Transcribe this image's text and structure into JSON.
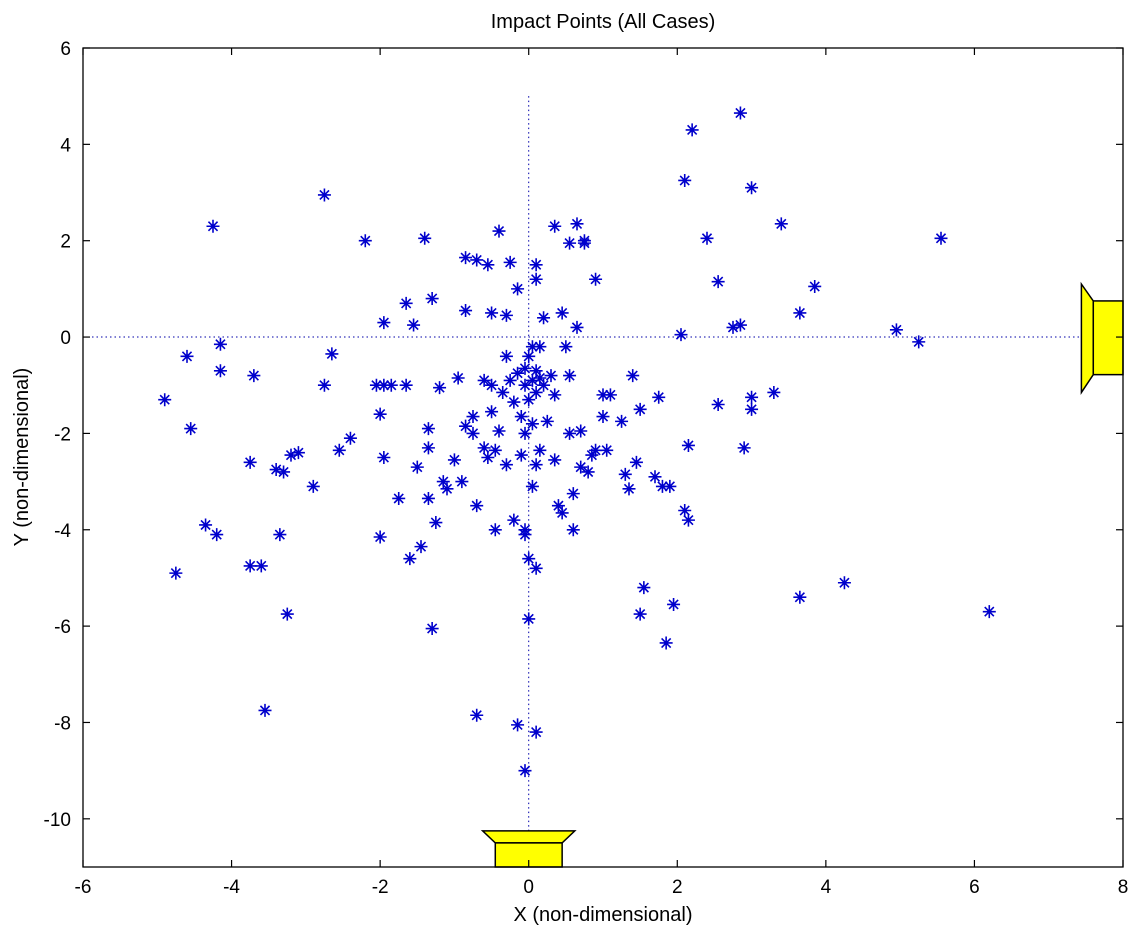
{
  "chart_data": {
    "type": "scatter",
    "title": "Impact Points (All Cases)",
    "xlabel": "X (non-dimensional)",
    "ylabel": "Y (non-dimensional)",
    "xlim": [
      -6,
      8
    ],
    "ylim": [
      -11,
      6
    ],
    "xticks": [
      -6,
      -4,
      -2,
      0,
      2,
      4,
      6,
      8
    ],
    "yticks": [
      -10,
      -8,
      -6,
      -4,
      -2,
      0,
      2,
      4,
      6
    ],
    "marker": "asterisk",
    "marker_color": "#0000cc",
    "reference_lines": {
      "vertical_x": 0,
      "horizontal_y": 0,
      "style": "dotted"
    },
    "grid": false,
    "series": [
      {
        "points": [
          [
            -4.9,
            -1.3
          ],
          [
            -4.75,
            -4.9
          ],
          [
            -4.6,
            -0.4
          ],
          [
            -4.55,
            -1.9
          ],
          [
            -4.35,
            -3.9
          ],
          [
            -4.25,
            2.3
          ],
          [
            -4.2,
            -4.1
          ],
          [
            -4.15,
            -0.15
          ],
          [
            -4.15,
            -0.7
          ],
          [
            -3.7,
            -0.8
          ],
          [
            -3.75,
            -2.6
          ],
          [
            -3.75,
            -4.75
          ],
          [
            -3.6,
            -4.75
          ],
          [
            -3.55,
            -7.75
          ],
          [
            -3.4,
            -2.75
          ],
          [
            -3.3,
            -2.8
          ],
          [
            -3.35,
            -4.1
          ],
          [
            -3.2,
            -2.45
          ],
          [
            -3.1,
            -2.4
          ],
          [
            -3.25,
            -5.75
          ],
          [
            -2.9,
            -3.1
          ],
          [
            -2.75,
            2.95
          ],
          [
            -2.75,
            -1.0
          ],
          [
            -2.65,
            -0.35
          ],
          [
            -2.55,
            -2.35
          ],
          [
            -2.4,
            -2.1
          ],
          [
            -2.2,
            2.0
          ],
          [
            -2.05,
            -1.0
          ],
          [
            -2.0,
            -1.6
          ],
          [
            -1.95,
            -1.0
          ],
          [
            -2.0,
            -4.15
          ],
          [
            -1.95,
            -2.5
          ],
          [
            -1.95,
            0.3
          ],
          [
            -1.85,
            -1.0
          ],
          [
            -1.75,
            -3.35
          ],
          [
            -1.65,
            0.7
          ],
          [
            -1.65,
            -1.0
          ],
          [
            -1.6,
            -4.6
          ],
          [
            -1.55,
            0.25
          ],
          [
            -1.5,
            -2.7
          ],
          [
            -1.45,
            -4.35
          ],
          [
            -1.4,
            2.05
          ],
          [
            -1.35,
            -1.9
          ],
          [
            -1.35,
            -2.3
          ],
          [
            -1.35,
            -3.35
          ],
          [
            -1.3,
            0.8
          ],
          [
            -1.3,
            -6.05
          ],
          [
            -1.2,
            -1.05
          ],
          [
            -1.25,
            -3.85
          ],
          [
            -1.15,
            -3.0
          ],
          [
            -1.1,
            -3.15
          ],
          [
            -1.0,
            -2.55
          ],
          [
            -0.95,
            -0.85
          ],
          [
            -0.9,
            -3.0
          ],
          [
            -0.85,
            -1.85
          ],
          [
            -0.85,
            0.55
          ],
          [
            -0.85,
            1.65
          ],
          [
            -0.75,
            -1.65
          ],
          [
            -0.75,
            -2.0
          ],
          [
            -0.7,
            -3.5
          ],
          [
            -0.7,
            1.6
          ],
          [
            -0.7,
            -7.85
          ],
          [
            -0.6,
            -0.9
          ],
          [
            -0.55,
            1.5
          ],
          [
            -0.6,
            -2.3
          ],
          [
            -0.55,
            -2.5
          ],
          [
            -0.5,
            -1.0
          ],
          [
            -0.5,
            -1.55
          ],
          [
            -0.5,
            0.5
          ],
          [
            -0.45,
            -2.35
          ],
          [
            -0.45,
            -4.0
          ],
          [
            -0.4,
            2.2
          ],
          [
            -0.4,
            -1.95
          ],
          [
            -0.35,
            -1.15
          ],
          [
            -0.3,
            -0.4
          ],
          [
            -0.3,
            0.45
          ],
          [
            -0.3,
            -2.65
          ],
          [
            -0.25,
            1.55
          ],
          [
            -0.25,
            -0.9
          ],
          [
            -0.2,
            -1.35
          ],
          [
            -0.2,
            -3.8
          ],
          [
            -0.15,
            1.0
          ],
          [
            -0.15,
            -0.75
          ],
          [
            -0.15,
            -8.05
          ],
          [
            -0.1,
            -2.45
          ],
          [
            -0.1,
            -1.65
          ],
          [
            -0.05,
            -0.65
          ],
          [
            -0.05,
            -1.0
          ],
          [
            -0.05,
            -2.0
          ],
          [
            -0.05,
            -4.0
          ],
          [
            -0.05,
            -4.1
          ],
          [
            -0.05,
            -9.0
          ],
          [
            0.0,
            -0.4
          ],
          [
            0.0,
            -1.3
          ],
          [
            0.0,
            -4.6
          ],
          [
            0.0,
            -5.85
          ],
          [
            0.05,
            -0.2
          ],
          [
            0.05,
            -0.9
          ],
          [
            0.05,
            -1.8
          ],
          [
            0.05,
            -3.1
          ],
          [
            0.1,
            1.5
          ],
          [
            0.1,
            1.2
          ],
          [
            0.1,
            -0.7
          ],
          [
            0.1,
            -1.15
          ],
          [
            0.1,
            -2.65
          ],
          [
            0.1,
            -4.8
          ],
          [
            0.1,
            -8.2
          ],
          [
            0.15,
            -0.2
          ],
          [
            0.15,
            -0.85
          ],
          [
            0.15,
            -2.35
          ],
          [
            0.2,
            0.4
          ],
          [
            0.2,
            -1.0
          ],
          [
            0.25,
            -1.75
          ],
          [
            0.3,
            -0.8
          ],
          [
            0.35,
            -1.2
          ],
          [
            0.35,
            -2.55
          ],
          [
            0.35,
            2.3
          ],
          [
            0.4,
            -3.5
          ],
          [
            0.45,
            0.5
          ],
          [
            0.45,
            -3.65
          ],
          [
            0.5,
            -0.2
          ],
          [
            0.55,
            1.95
          ],
          [
            0.55,
            -0.8
          ],
          [
            0.55,
            -2.0
          ],
          [
            0.6,
            -3.25
          ],
          [
            0.6,
            -4.0
          ],
          [
            0.65,
            2.35
          ],
          [
            0.65,
            0.2
          ],
          [
            0.7,
            -1.95
          ],
          [
            0.7,
            -2.7
          ],
          [
            0.75,
            2.0
          ],
          [
            0.75,
            1.95
          ],
          [
            0.8,
            -2.8
          ],
          [
            0.85,
            -2.45
          ],
          [
            0.9,
            -2.35
          ],
          [
            0.9,
            1.2
          ],
          [
            1.0,
            -1.2
          ],
          [
            1.0,
            -1.65
          ],
          [
            1.05,
            -2.35
          ],
          [
            1.1,
            -1.2
          ],
          [
            1.25,
            -1.75
          ],
          [
            1.3,
            -2.85
          ],
          [
            1.35,
            -3.15
          ],
          [
            1.4,
            -0.8
          ],
          [
            1.45,
            -2.6
          ],
          [
            1.5,
            -1.5
          ],
          [
            1.5,
            -5.75
          ],
          [
            1.55,
            -5.2
          ],
          [
            1.7,
            -2.9
          ],
          [
            1.75,
            -1.25
          ],
          [
            1.8,
            -3.1
          ],
          [
            1.85,
            -6.35
          ],
          [
            1.9,
            -3.1
          ],
          [
            1.95,
            -5.55
          ],
          [
            2.05,
            0.05
          ],
          [
            2.1,
            3.25
          ],
          [
            2.1,
            -3.6
          ],
          [
            2.15,
            -2.25
          ],
          [
            2.15,
            -3.8
          ],
          [
            2.2,
            4.3
          ],
          [
            2.4,
            2.05
          ],
          [
            2.55,
            1.15
          ],
          [
            2.55,
            -1.4
          ],
          [
            2.75,
            0.2
          ],
          [
            2.85,
            0.25
          ],
          [
            2.85,
            4.65
          ],
          [
            2.9,
            -2.3
          ],
          [
            3.0,
            3.1
          ],
          [
            3.0,
            -1.25
          ],
          [
            3.0,
            -1.5
          ],
          [
            3.3,
            -1.15
          ],
          [
            3.4,
            2.35
          ],
          [
            3.65,
            0.5
          ],
          [
            3.65,
            -5.4
          ],
          [
            3.85,
            1.05
          ],
          [
            4.25,
            -5.1
          ],
          [
            4.95,
            0.15
          ],
          [
            5.25,
            -0.1
          ],
          [
            5.55,
            2.05
          ],
          [
            6.2,
            -5.7
          ]
        ]
      }
    ],
    "annotations": [
      {
        "shape": "yellow-nozzle",
        "orientation": "vertical-opening-up",
        "location": "bottom-center",
        "x_range": [
          -0.6,
          0.6
        ],
        "color": "#ffff00"
      },
      {
        "shape": "yellow-nozzle",
        "orientation": "horizontal-opening-left",
        "location": "right-middle",
        "y_range": [
          -1.15,
          1.1
        ],
        "color": "#ffff00"
      }
    ]
  }
}
